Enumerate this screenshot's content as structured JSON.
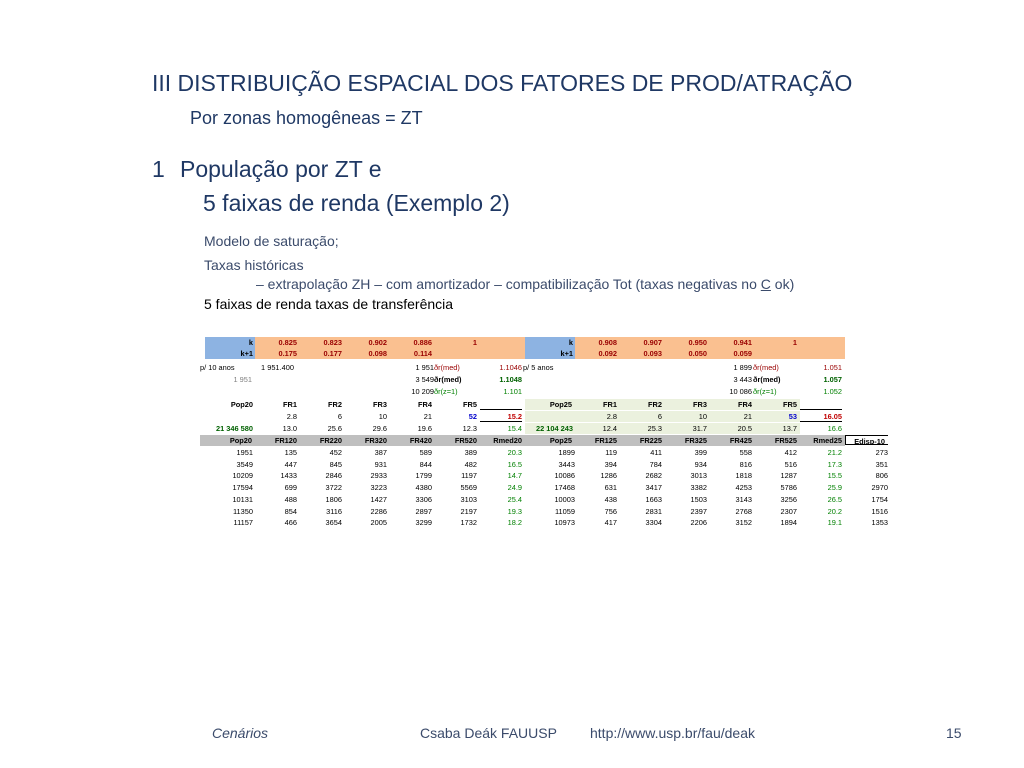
{
  "slide": {
    "title": "III   DISTRIBUIÇÃO ESPACIAL DOS FATORES DE PROD/ATRAÇÃO",
    "subtitle": "Por zonas homogêneas = ZT",
    "heading_num": "1",
    "heading_line1": "População por ZT e",
    "heading_line2": "5 faixas de renda (Exemplo 2)",
    "line1": "Modelo de saturação;",
    "line2": "Taxas históricas",
    "line3_pre": "– extrapolação ZH – com amortizador – compatibilização Tot (taxas negativas no ",
    "line3_u": "C",
    "line3_post": " ok)",
    "line4": "5 faixas de renda taxas de transferência"
  },
  "table": {
    "k_left": [
      "k",
      "0.825",
      "0.823",
      "0.902",
      "0.886",
      "1"
    ],
    "k1_left": [
      "k+1",
      "0.175",
      "0.177",
      "0.098",
      "0.114"
    ],
    "k_right": [
      "k",
      "0.908",
      "0.907",
      "0.950",
      "0.941",
      "1"
    ],
    "k1_right": [
      "k+1",
      "0.092",
      "0.093",
      "0.050",
      "0.059"
    ],
    "p10": {
      "label": "p/ 10 anos",
      "value": "1 951.400",
      "v1": "1 951",
      "r1": "ðr(med)",
      "rv": "1.1046",
      "p5": "p/ 5 anos",
      "v2": "1 899",
      "r2": "ðr(med)",
      "rv2": "1.051"
    },
    "r1951": {
      "a": "1 951",
      "v1": "3 549",
      "r1": "ðr(med)",
      "rv": "1.1048",
      "v2": "3 443",
      "r2": "ðr(med)",
      "rv2": "1.057"
    },
    "r10209": {
      "v1": "10 209",
      "r1": "ðr(z=1)",
      "rv": "1.101",
      "v2": "10 086",
      "r2": "ðr(z=1)",
      "rv2": "1.052"
    },
    "pop_hdr_left": [
      "Pop20",
      "FR1",
      "FR2",
      "FR3",
      "FR4",
      "FR5"
    ],
    "pop_hdr_right": [
      "Pop25",
      "FR1",
      "FR2",
      "FR3",
      "FR4",
      "FR5"
    ],
    "pct_left": [
      "2.8",
      "6",
      "10",
      "21",
      "52",
      "15.2"
    ],
    "pct_right": [
      "2.8",
      "6",
      "10",
      "21",
      "53",
      "16.05"
    ],
    "tot_left": [
      "21 346 580",
      "13.0",
      "25.6",
      "29.6",
      "19.6",
      "12.3",
      "15.4"
    ],
    "tot_right": [
      "22 104 243",
      "12.4",
      "25.3",
      "31.7",
      "20.5",
      "13.7",
      "16.6"
    ],
    "hdr": [
      "Pop20",
      "FR120",
      "FR220",
      "FR320",
      "FR420",
      "FR520",
      "Rmed20",
      "Pop25",
      "FR125",
      "FR225",
      "FR325",
      "FR425",
      "FR525",
      "Rmed25",
      "Edisp-10"
    ],
    "rows": [
      [
        "1951",
        "135",
        "452",
        "387",
        "589",
        "389",
        "20.3",
        "1899",
        "119",
        "411",
        "399",
        "558",
        "412",
        "21.2",
        "273"
      ],
      [
        "3549",
        "447",
        "845",
        "931",
        "844",
        "482",
        "16.5",
        "3443",
        "394",
        "784",
        "934",
        "816",
        "516",
        "17.3",
        "351"
      ],
      [
        "10209",
        "1433",
        "2846",
        "2933",
        "1799",
        "1197",
        "14.7",
        "10086",
        "1286",
        "2682",
        "3013",
        "1818",
        "1287",
        "15.5",
        "806"
      ],
      [
        "17594",
        "699",
        "3722",
        "3223",
        "4380",
        "5569",
        "24.9",
        "17468",
        "631",
        "3417",
        "3382",
        "4253",
        "5786",
        "25.9",
        "2970"
      ],
      [
        "10131",
        "488",
        "1806",
        "1427",
        "3306",
        "3103",
        "25.4",
        "10003",
        "438",
        "1663",
        "1503",
        "3143",
        "3256",
        "26.5",
        "1754"
      ],
      [
        "11350",
        "854",
        "3116",
        "2286",
        "2897",
        "2197",
        "19.3",
        "11059",
        "756",
        "2831",
        "2397",
        "2768",
        "2307",
        "20.2",
        "1516"
      ],
      [
        "11157",
        "466",
        "3654",
        "2005",
        "3299",
        "1732",
        "18.2",
        "10973",
        "417",
        "3304",
        "2206",
        "3152",
        "1894",
        "19.1",
        "1353"
      ]
    ]
  },
  "footer": {
    "left": "Cenários",
    "center": "Csaba Deák  FAUUSP",
    "url": "http://www.usp.br/fau/deak",
    "page": "15"
  }
}
